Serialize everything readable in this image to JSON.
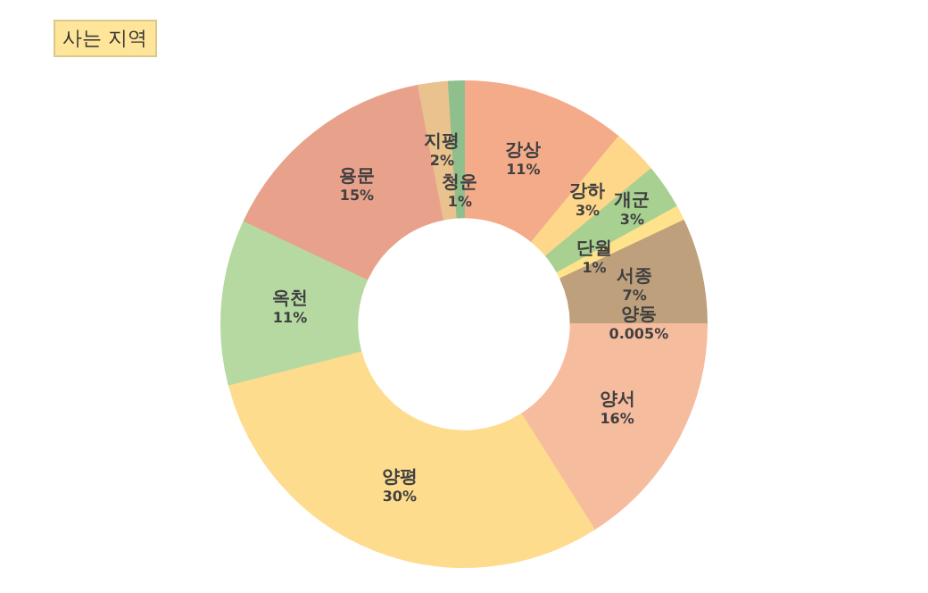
{
  "chart_data": {
    "type": "donut",
    "title": "사는 지역",
    "categories": [
      "강상",
      "강하",
      "개군",
      "단월",
      "서종",
      "양동",
      "양서",
      "양평",
      "옥천",
      "용문",
      "지평",
      "청운"
    ],
    "values": [
      11,
      3,
      3,
      1,
      7,
      0.005,
      16,
      30,
      11,
      15,
      2,
      1
    ],
    "colors": [
      "#f4ab8a",
      "#fed78a",
      "#a8d191",
      "#fee28c",
      "#bfa07c",
      "#8fb08c",
      "#f6bc9e",
      "#fedc8e",
      "#b6d9a2",
      "#e8a28c",
      "#e9c28e",
      "#8fbf8c"
    ],
    "data_labels": true,
    "value_labels": [
      "11%",
      "3%",
      "3%",
      "1%",
      "7%",
      "0.005%",
      "16%",
      "30%",
      "11%",
      "15%",
      "2%",
      "1%"
    ]
  }
}
